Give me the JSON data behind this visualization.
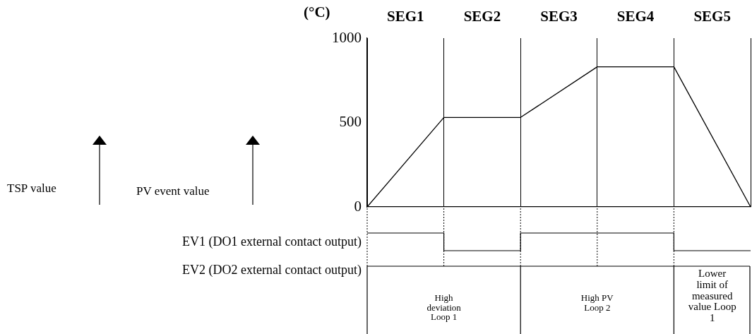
{
  "chart_data": {
    "type": "line",
    "ylabel": "(°C)",
    "categories": [
      null,
      null,
      null,
      null,
      null,
      null
    ],
    "series": [
      {
        "color": "#000000",
        "values": [
          0,
          530,
          530,
          830,
          830,
          0
        ]
      }
    ],
    "ylim": [
      0,
      1000
    ],
    "yticks": [
      0,
      500,
      1000
    ],
    "annotations": [
      "SEG1",
      "SEG2",
      "SEG3",
      "SEG4",
      "SEG5",
      "TSP value",
      "PV event value",
      "EV1 (DO1 external contact output)",
      "EV2 (DO2 external contact output)",
      "High deviation Loop 1",
      "High PV Loop 2",
      "Lower limit of measured value Loop 1"
    ],
    "grid": "x",
    "legend": false,
    "marker": "none",
    "line_style": "solid"
  }
}
